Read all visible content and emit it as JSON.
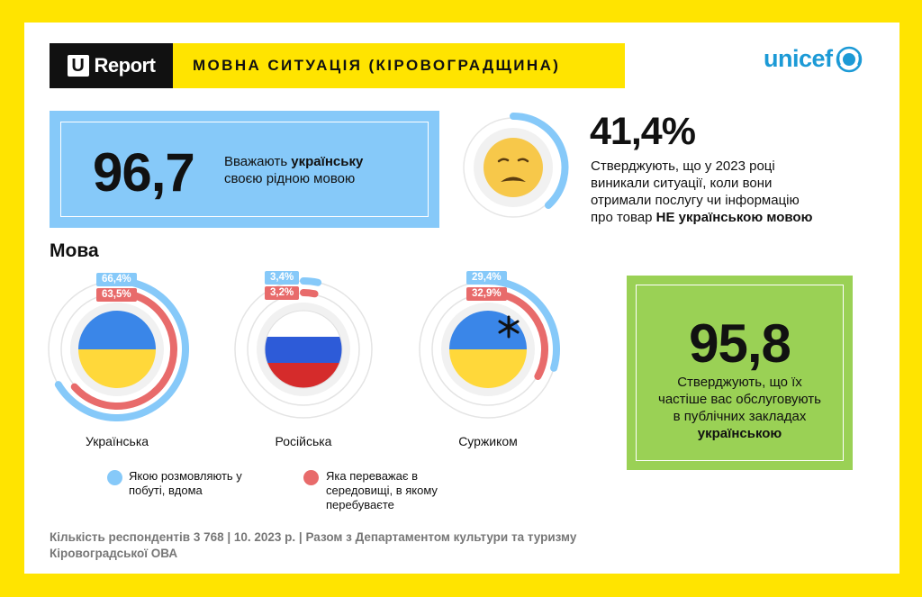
{
  "header": {
    "brand_letter": "U",
    "brand_name": "Report",
    "title": "МОВНА СИТУАЦІЯ (КІРОВОГРАДЩИНА)",
    "partner_logo": "unicef"
  },
  "stat_native": {
    "value": "96,7",
    "text_before": "Вважають ",
    "text_bold": "українську",
    "text_after": "своєю рідною мовою"
  },
  "stat_service": {
    "value": "41,4%",
    "icon": "sad-face-icon",
    "lines": [
      "Стверджують, що у 2023 році",
      "виникали ситуації, коли вони",
      "отримали послугу чи інформацію"
    ],
    "last_prefix": "про товар ",
    "last_bold": "НЕ українською мовою"
  },
  "stat_public": {
    "value": "95,8",
    "lines": [
      "Стверджують, що їх",
      "частіше вас обслуговують",
      "в публічних закладах"
    ],
    "bold_line": "українською"
  },
  "section_title": "Мова",
  "languages": [
    {
      "label": "Українська",
      "home": "66,4%",
      "env": "63,5%",
      "home_value": 66.4,
      "env_value": 63.5,
      "flag": "ukraine"
    },
    {
      "label": "Російська",
      "home": "3,4%",
      "env": "3,2%",
      "home_value": 3.4,
      "env_value": 3.2,
      "flag": "russia"
    },
    {
      "label": "Суржиком",
      "home": "29,4%",
      "env": "32,9%",
      "home_value": 29.4,
      "env_value": 32.9,
      "flag": "ukraine-asterisk"
    }
  ],
  "legend": {
    "home": [
      "Якою розмовляють у",
      "побуті, вдома"
    ],
    "env": [
      "Яка переважає в",
      "середовищі, в якому",
      "перебуваєте"
    ]
  },
  "footer": {
    "line1": "Кількість респондентів 3 768 | 10. 2023 р. | Разом з Департаментом культури та туризму",
    "line2": "Кіровоградської ОВА"
  },
  "colors": {
    "home": "#86c9f9",
    "env": "#e86b6b",
    "green": "#9ad155",
    "yellow": "#ffe400",
    "flag_blue": "#3a86e8",
    "flag_yellow": "#ffd83a"
  }
}
